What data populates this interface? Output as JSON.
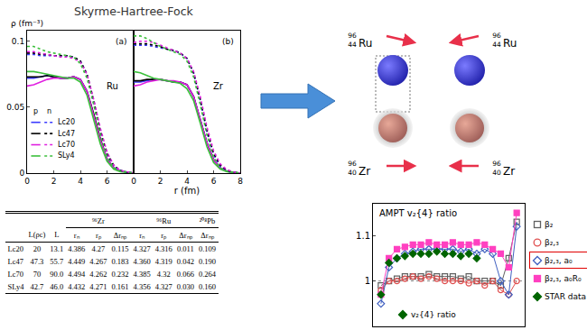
{
  "title": "Skyrme-Hartree-Fock",
  "density_legend": {
    "columns": [
      "p",
      "n"
    ],
    "models": [
      "Lc20",
      "Lc47",
      "Lc70",
      "SLy4"
    ]
  },
  "chart_data": [
    {
      "type": "line",
      "panel_label": "(a)",
      "label": "Ru",
      "ylabel": "ρ (fm⁻³)",
      "x": [
        0,
        0.5,
        1,
        1.5,
        2,
        2.5,
        3,
        3.5,
        4,
        4.5,
        5,
        5.5,
        6,
        6.5,
        7,
        7.5,
        8
      ],
      "xlim": [
        0,
        8
      ],
      "xticks": [
        0,
        2,
        4,
        6
      ],
      "ylim": [
        0,
        0.108
      ],
      "yticks": [
        0,
        0.05,
        0.1
      ],
      "series": [
        {
          "model": "Lc20",
          "particle": "p",
          "color": "#3a3aff",
          "line_style": "solid",
          "values": [
            0.072,
            0.072,
            0.073,
            0.074,
            0.073,
            0.072,
            0.072,
            0.073,
            0.071,
            0.062,
            0.044,
            0.025,
            0.011,
            0.004,
            0.0015,
            0.0005,
            0
          ]
        },
        {
          "model": "Lc47",
          "particle": "p",
          "color": "#000000",
          "line_style": "solid",
          "values": [
            0.073,
            0.073,
            0.073,
            0.074,
            0.073,
            0.072,
            0.072,
            0.073,
            0.071,
            0.062,
            0.045,
            0.026,
            0.011,
            0.004,
            0.0015,
            0.0005,
            0
          ]
        },
        {
          "model": "Lc70",
          "particle": "p",
          "color": "#e020e0",
          "line_style": "solid",
          "values": [
            0.066,
            0.067,
            0.069,
            0.071,
            0.072,
            0.072,
            0.072,
            0.073,
            0.071,
            0.062,
            0.044,
            0.025,
            0.011,
            0.004,
            0.0015,
            0.0005,
            0
          ]
        },
        {
          "model": "SLy4",
          "particle": "p",
          "color": "#3cc03c",
          "line_style": "solid",
          "values": [
            0.077,
            0.077,
            0.076,
            0.075,
            0.074,
            0.073,
            0.072,
            0.072,
            0.069,
            0.059,
            0.041,
            0.022,
            0.009,
            0.003,
            0.001,
            0.0003,
            0
          ]
        },
        {
          "model": "Lc20",
          "particle": "n",
          "color": "#3a3aff",
          "line_style": "dot",
          "values": [
            0.09,
            0.09,
            0.089,
            0.089,
            0.089,
            0.089,
            0.089,
            0.088,
            0.085,
            0.075,
            0.054,
            0.031,
            0.014,
            0.005,
            0.002,
            0.0006,
            0
          ]
        },
        {
          "model": "Lc47",
          "particle": "n",
          "color": "#000000",
          "line_style": "dot",
          "values": [
            0.091,
            0.091,
            0.09,
            0.09,
            0.089,
            0.089,
            0.089,
            0.088,
            0.085,
            0.075,
            0.055,
            0.032,
            0.015,
            0.006,
            0.002,
            0.0007,
            0
          ]
        },
        {
          "model": "Lc70",
          "particle": "n",
          "color": "#e020e0",
          "line_style": "dot",
          "values": [
            0.092,
            0.092,
            0.091,
            0.09,
            0.089,
            0.088,
            0.088,
            0.087,
            0.084,
            0.075,
            0.056,
            0.034,
            0.016,
            0.006,
            0.002,
            0.0008,
            0
          ]
        },
        {
          "model": "SLy4",
          "particle": "n",
          "color": "#3cc03c",
          "line_style": "dot",
          "values": [
            0.096,
            0.096,
            0.094,
            0.092,
            0.091,
            0.09,
            0.089,
            0.088,
            0.083,
            0.072,
            0.052,
            0.029,
            0.012,
            0.004,
            0.0015,
            0.0005,
            0
          ]
        }
      ]
    },
    {
      "type": "line",
      "panel_label": "(b)",
      "label": "Zr",
      "xlabel": "r (fm)",
      "x": [
        0,
        0.5,
        1,
        1.5,
        2,
        2.5,
        3,
        3.5,
        4,
        4.5,
        5,
        5.5,
        6,
        6.5,
        7,
        7.5,
        8
      ],
      "xlim": [
        0,
        8
      ],
      "xticks": [
        0,
        2,
        4,
        6,
        8
      ],
      "ylim": [
        0,
        0.108
      ],
      "tick_labels": "x",
      "series": [
        {
          "model": "Lc20",
          "particle": "p",
          "color": "#3a3aff",
          "line_style": "solid",
          "values": [
            0.069,
            0.069,
            0.07,
            0.071,
            0.071,
            0.07,
            0.069,
            0.069,
            0.067,
            0.058,
            0.041,
            0.023,
            0.01,
            0.004,
            0.0013,
            0.0004,
            0
          ]
        },
        {
          "model": "Lc47",
          "particle": "p",
          "color": "#000000",
          "line_style": "solid",
          "values": [
            0.07,
            0.07,
            0.071,
            0.071,
            0.071,
            0.07,
            0.069,
            0.069,
            0.067,
            0.058,
            0.041,
            0.023,
            0.01,
            0.004,
            0.0013,
            0.0004,
            0
          ]
        },
        {
          "model": "Lc70",
          "particle": "p",
          "color": "#e020e0",
          "line_style": "solid",
          "values": [
            0.066,
            0.067,
            0.069,
            0.07,
            0.071,
            0.07,
            0.07,
            0.069,
            0.067,
            0.058,
            0.041,
            0.023,
            0.01,
            0.004,
            0.0013,
            0.0004,
            0
          ]
        },
        {
          "model": "SLy4",
          "particle": "p",
          "color": "#3cc03c",
          "line_style": "solid",
          "values": [
            0.077,
            0.076,
            0.074,
            0.072,
            0.071,
            0.07,
            0.069,
            0.068,
            0.064,
            0.055,
            0.038,
            0.02,
            0.008,
            0.003,
            0.001,
            0.0003,
            0
          ]
        },
        {
          "model": "Lc20",
          "particle": "n",
          "color": "#3a3aff",
          "line_style": "dot",
          "values": [
            0.097,
            0.097,
            0.097,
            0.096,
            0.095,
            0.094,
            0.093,
            0.091,
            0.087,
            0.076,
            0.055,
            0.031,
            0.014,
            0.005,
            0.002,
            0.0006,
            0
          ]
        },
        {
          "model": "Lc47",
          "particle": "n",
          "color": "#000000",
          "line_style": "dot",
          "values": [
            0.098,
            0.098,
            0.098,
            0.097,
            0.096,
            0.094,
            0.093,
            0.091,
            0.087,
            0.076,
            0.056,
            0.033,
            0.015,
            0.006,
            0.002,
            0.0007,
            0
          ]
        },
        {
          "model": "Lc70",
          "particle": "n",
          "color": "#e020e0",
          "line_style": "dot",
          "values": [
            0.099,
            0.1,
            0.1,
            0.099,
            0.097,
            0.095,
            0.093,
            0.091,
            0.087,
            0.077,
            0.058,
            0.035,
            0.017,
            0.007,
            0.0025,
            0.0009,
            0
          ]
        },
        {
          "model": "SLy4",
          "particle": "n",
          "color": "#3cc03c",
          "line_style": "dot",
          "values": [
            0.104,
            0.104,
            0.102,
            0.099,
            0.096,
            0.094,
            0.092,
            0.09,
            0.085,
            0.073,
            0.052,
            0.029,
            0.012,
            0.004,
            0.0015,
            0.0005,
            0
          ]
        }
      ]
    },
    {
      "type": "line",
      "title": "AMPT v₂{4} ratio",
      "tick_labels": "y",
      "x": [
        1,
        2,
        3,
        4,
        5,
        6,
        7,
        8,
        9,
        10,
        11,
        12,
        13,
        14,
        15,
        16,
        17,
        18
      ],
      "xlim": [
        0,
        19
      ],
      "ylim": [
        0.9,
        1.17
      ],
      "yticks": [
        1,
        1.1
      ],
      "reference_line": 1,
      "annotations": [
        {
          "text": "v₂{4} ratio"
        }
      ],
      "series": [
        {
          "name": "β₂",
          "color": "#606060",
          "marker": "square-open",
          "values": [
            0.99,
            1.0,
            1.005,
            1.01,
            1.01,
            1.01,
            1.015,
            1.01,
            1.01,
            1.01,
            1.005,
            1.01,
            1.0,
            1.0,
            1.0,
            0.99,
            1.05,
            1.13
          ]
        },
        {
          "name": "β₂,₃",
          "color": "#e05050",
          "marker": "circle-open",
          "values": [
            0.98,
            1.0,
            1.0,
            1.005,
            1.01,
            1.005,
            1.01,
            1.005,
            1.0,
            1.0,
            1.0,
            0.995,
            1.0,
            0.99,
            1.0,
            0.98,
            0.97,
            1.0
          ]
        },
        {
          "name": "β₂,₃, a₀",
          "color": "#4060c0",
          "marker": "diamond-open",
          "values": [
            0.95,
            1.03,
            1.05,
            1.06,
            1.065,
            1.07,
            1.07,
            1.07,
            1.07,
            1.07,
            1.065,
            1.07,
            1.06,
            1.07,
            1.06,
            1.0,
            0.97,
            1.12
          ]
        },
        {
          "name": "β₂,₃, a₀R₀",
          "color": "#ff40c0",
          "marker": "square",
          "values": [
            0.97,
            1.05,
            1.07,
            1.075,
            1.08,
            1.08,
            1.085,
            1.08,
            1.08,
            1.085,
            1.08,
            1.08,
            1.085,
            1.08,
            1.07,
            1.06,
            1.03,
            1.15
          ]
        },
        {
          "name": "STAR data",
          "color": "#006400",
          "marker": "diamond",
          "type": "scatter",
          "values": [
            0.97,
            1.04,
            1.05,
            1.055,
            1.06,
            1.06,
            1.06,
            1.065,
            1.06,
            1.06,
            1.055,
            1.06,
            1.05,
            null,
            null,
            null,
            null,
            null
          ]
        }
      ]
    }
  ],
  "table": {
    "group_header": [
      null,
      null,
      null,
      {
        "text": "⁹⁶Zr",
        "span": 3
      },
      {
        "text": "⁹⁶Ru",
        "span": 3
      },
      {
        "text": "²⁰⁸Pb",
        "span": 1
      }
    ],
    "columns": [
      null,
      "L(ρc)",
      "L",
      "rₙ",
      "rₚ",
      "Δrₙₚ",
      "rₙ",
      "rₚ",
      "Δrₙₚ",
      "Δrₙₚ"
    ],
    "rows": [
      [
        "Lc20",
        "20",
        "13.1",
        "4.386",
        "4.27",
        "0.115",
        "4.327",
        "4.316",
        "0.011",
        "0.109"
      ],
      [
        "Lc47",
        "47.3",
        "55.7",
        "4.449",
        "4.267",
        "0.183",
        "4.360",
        "4.319",
        "0.042",
        "0.190"
      ],
      [
        "Lc70",
        "70",
        "90.0",
        "4.494",
        "4.262",
        "0.232",
        "4.385",
        "4.32",
        "0.066",
        "0.264"
      ],
      [
        "SLy4",
        "42.7",
        "46.0",
        "4.432",
        "4.271",
        "0.161",
        "4.356",
        "4.327",
        "0.030",
        "0.160"
      ]
    ]
  },
  "diagram": {
    "nuclei": [
      {
        "mass": "96",
        "Z": "44",
        "symbol": "Ru"
      },
      {
        "mass": "96",
        "Z": "40",
        "symbol": "Zr"
      }
    ]
  }
}
